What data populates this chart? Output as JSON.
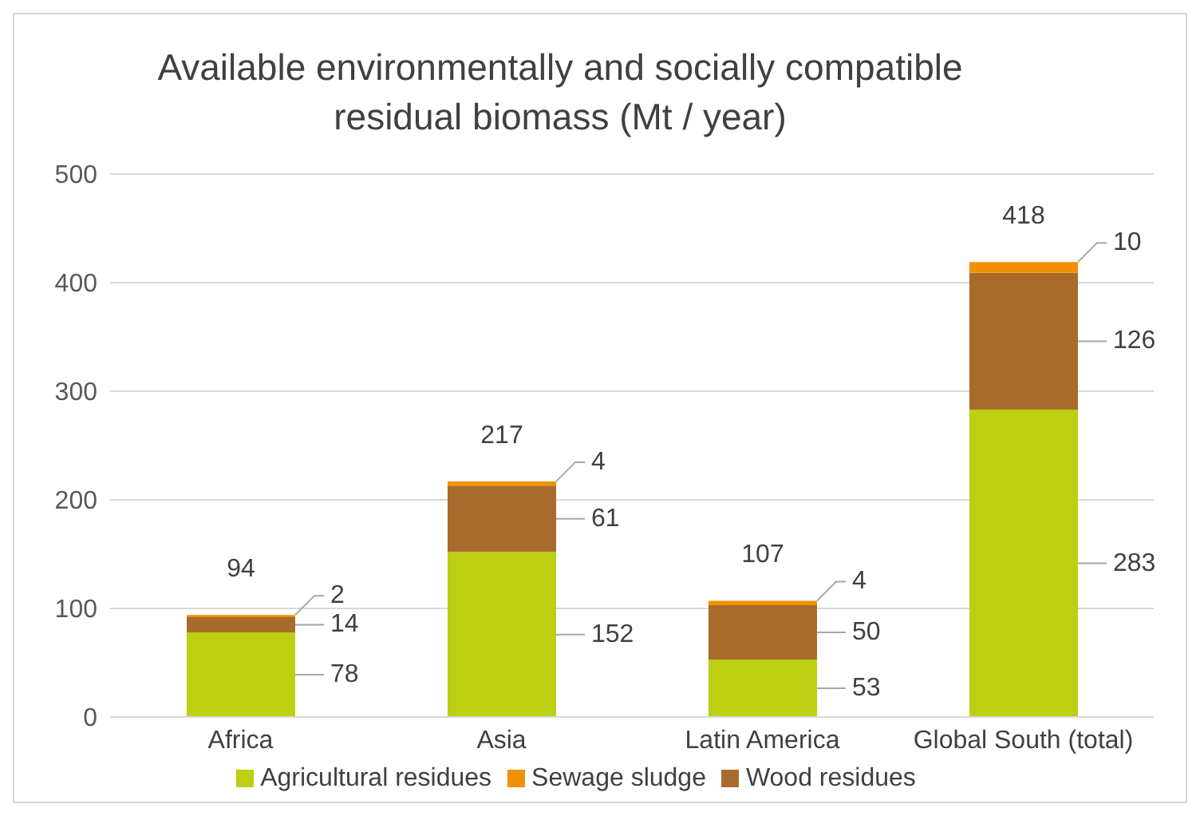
{
  "chart_data": {
    "type": "bar",
    "title": "Available environmentally and socially compatible residual biomass (Mt / year)",
    "categories": [
      "Africa",
      "Asia",
      "Latin America",
      "Global South (total)"
    ],
    "stacked": true,
    "series": [
      {
        "name": "Agricultural residues",
        "color": "#bccf12",
        "values": [
          78,
          152,
          53,
          283
        ]
      },
      {
        "name": "Wood residues",
        "color": "#a96b2c",
        "values": [
          14,
          61,
          50,
          126
        ]
      },
      {
        "name": "Sewage sludge",
        "color": "#f29100",
        "values": [
          2,
          4,
          4,
          10
        ]
      }
    ],
    "ylim": [
      0,
      500
    ],
    "yticks": [
      0,
      100,
      200,
      300,
      400,
      500
    ],
    "grid": "y",
    "legend": "bottom",
    "data_labels": true,
    "totals": [
      "94",
      "217",
      "107",
      "418"
    ]
  }
}
